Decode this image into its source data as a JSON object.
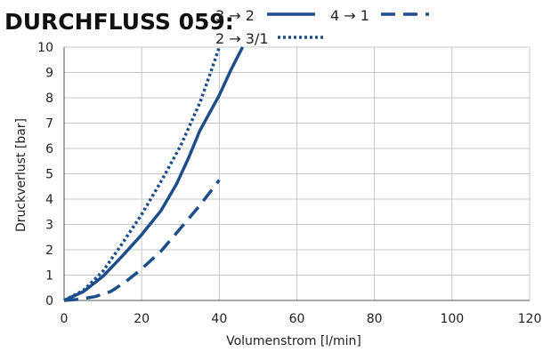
{
  "chart_data": {
    "type": "line",
    "title": "DURCHFLUSS 059:",
    "xlabel": "Volumenstrom [l/min]",
    "ylabel": "Druckverlust [bar]",
    "xlim": [
      0,
      120
    ],
    "ylim": [
      0,
      10
    ],
    "xticks": [
      0,
      20,
      40,
      60,
      80,
      100,
      120
    ],
    "yticks": [
      0,
      1,
      2,
      3,
      4,
      5,
      6,
      7,
      8,
      9,
      10
    ],
    "grid": true,
    "legend_position": "top",
    "series": [
      {
        "name": "3 → 2",
        "style": "solid",
        "color": "#1d4e8c",
        "points": [
          [
            0,
            0
          ],
          [
            5,
            0.35
          ],
          [
            10,
            0.95
          ],
          [
            15,
            1.75
          ],
          [
            20,
            2.6
          ],
          [
            25,
            3.55
          ],
          [
            29,
            4.6
          ],
          [
            32,
            5.6
          ],
          [
            35,
            6.7
          ],
          [
            40,
            8.1
          ],
          [
            43,
            9.1
          ],
          [
            46,
            10
          ]
        ]
      },
      {
        "name": "2 → 3/1",
        "style": "dotted",
        "color": "#1d4e8c",
        "points": [
          [
            0,
            0
          ],
          [
            5,
            0.4
          ],
          [
            10,
            1.15
          ],
          [
            15,
            2.25
          ],
          [
            20,
            3.4
          ],
          [
            25,
            4.7
          ],
          [
            30,
            6.1
          ],
          [
            35,
            7.8
          ],
          [
            38,
            9.1
          ],
          [
            40,
            10
          ]
        ]
      },
      {
        "name": "4 → 1",
        "style": "dashed",
        "color": "#1d4e8c",
        "points": [
          [
            0,
            0
          ],
          [
            4,
            0.05
          ],
          [
            8,
            0.15
          ],
          [
            12,
            0.35
          ],
          [
            16,
            0.75
          ],
          [
            20,
            1.25
          ],
          [
            25,
            1.95
          ],
          [
            30,
            2.85
          ],
          [
            35,
            3.75
          ],
          [
            40,
            4.75
          ]
        ]
      }
    ]
  }
}
